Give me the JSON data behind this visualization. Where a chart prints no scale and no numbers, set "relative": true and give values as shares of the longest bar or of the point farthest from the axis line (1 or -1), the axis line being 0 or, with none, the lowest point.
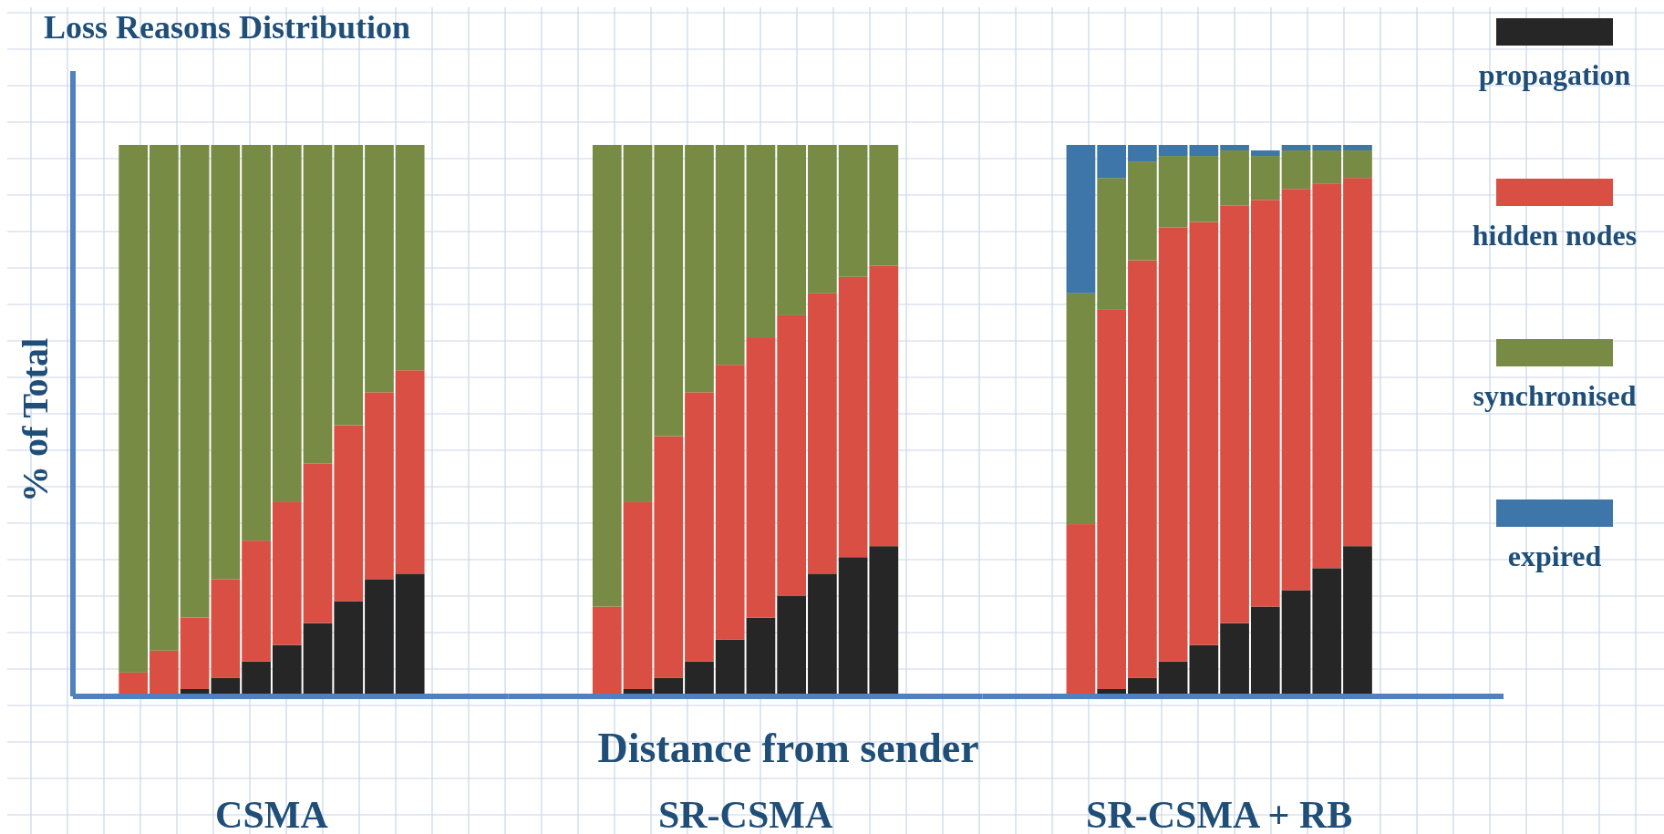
{
  "chart_data": [
    {
      "type": "bar",
      "title": "Loss Reasons Distribution",
      "ylabel": "% of Total",
      "relative": true,
      "stacked": true,
      "grid": true,
      "categories": [
        null,
        null,
        null,
        null,
        null,
        null,
        null,
        null,
        null,
        null
      ],
      "series": [
        {
          "color": "#262626",
          "values": [
            0,
            0,
            0.01,
            0.03,
            0.06,
            0.09,
            0.13,
            0.17,
            0.21,
            0.22
          ]
        },
        {
          "color": "#d94f43",
          "values": [
            0.04,
            0.08,
            0.13,
            0.18,
            0.22,
            0.26,
            0.29,
            0.32,
            0.34,
            0.37
          ]
        },
        {
          "color": "#778b45",
          "values": [
            0.96,
            0.92,
            0.86,
            0.79,
            0.72,
            0.65,
            0.58,
            0.51,
            0.45,
            0.41
          ]
        }
      ],
      "annotations": [
        "CSMA"
      ]
    },
    {
      "type": "bar",
      "xlabel": "Distance from sender",
      "relative": true,
      "stacked": true,
      "grid": true,
      "categories": [
        null,
        null,
        null,
        null,
        null,
        null,
        null,
        null,
        null,
        null
      ],
      "series": [
        {
          "color": "#262626",
          "values": [
            0,
            0.01,
            0.03,
            0.06,
            0.1,
            0.14,
            0.18,
            0.22,
            0.25,
            0.27
          ]
        },
        {
          "color": "#d94f43",
          "values": [
            0.16,
            0.34,
            0.44,
            0.49,
            0.5,
            0.51,
            0.51,
            0.51,
            0.51,
            0.51
          ]
        },
        {
          "color": "#778b45",
          "values": [
            0.84,
            0.65,
            0.53,
            0.45,
            0.4,
            0.35,
            0.31,
            0.27,
            0.24,
            0.22
          ]
        }
      ],
      "annotations": [
        "SR-CSMA"
      ]
    },
    {
      "type": "bar",
      "relative": true,
      "stacked": true,
      "grid": true,
      "legend": "right",
      "categories": [
        null,
        null,
        null,
        null,
        null,
        null,
        null,
        null,
        null,
        null
      ],
      "series": [
        {
          "name": "propagation",
          "color": "#262626",
          "values": [
            0,
            0.01,
            0.03,
            0.06,
            0.09,
            0.13,
            0.16,
            0.19,
            0.23,
            0.27
          ]
        },
        {
          "name": "hidden nodes",
          "color": "#d94f43",
          "values": [
            0.31,
            0.69,
            0.76,
            0.79,
            0.77,
            0.76,
            0.74,
            0.73,
            0.7,
            0.67
          ]
        },
        {
          "name": "synchronised",
          "color": "#778b45",
          "values": [
            0.42,
            0.24,
            0.18,
            0.13,
            0.12,
            0.1,
            0.08,
            0.07,
            0.06,
            0.05
          ]
        },
        {
          "name": "expired",
          "color": "#3f76a9",
          "values": [
            0.27,
            0.06,
            0.03,
            0.02,
            0.02,
            0.01,
            0.01,
            0.01,
            0.01,
            0.01
          ]
        }
      ],
      "annotations": [
        "SR-CSMA + RB"
      ]
    }
  ]
}
